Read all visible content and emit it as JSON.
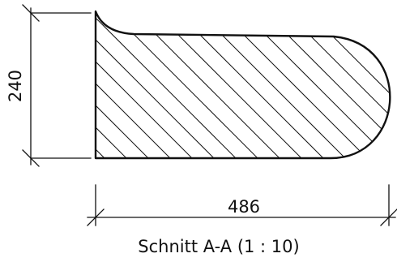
{
  "drawing": {
    "height_dimension": "240",
    "width_dimension": "486",
    "caption": "Schnitt A-A (1 : 10)",
    "line_color": "#111111",
    "background_color": "#ffffff"
  }
}
